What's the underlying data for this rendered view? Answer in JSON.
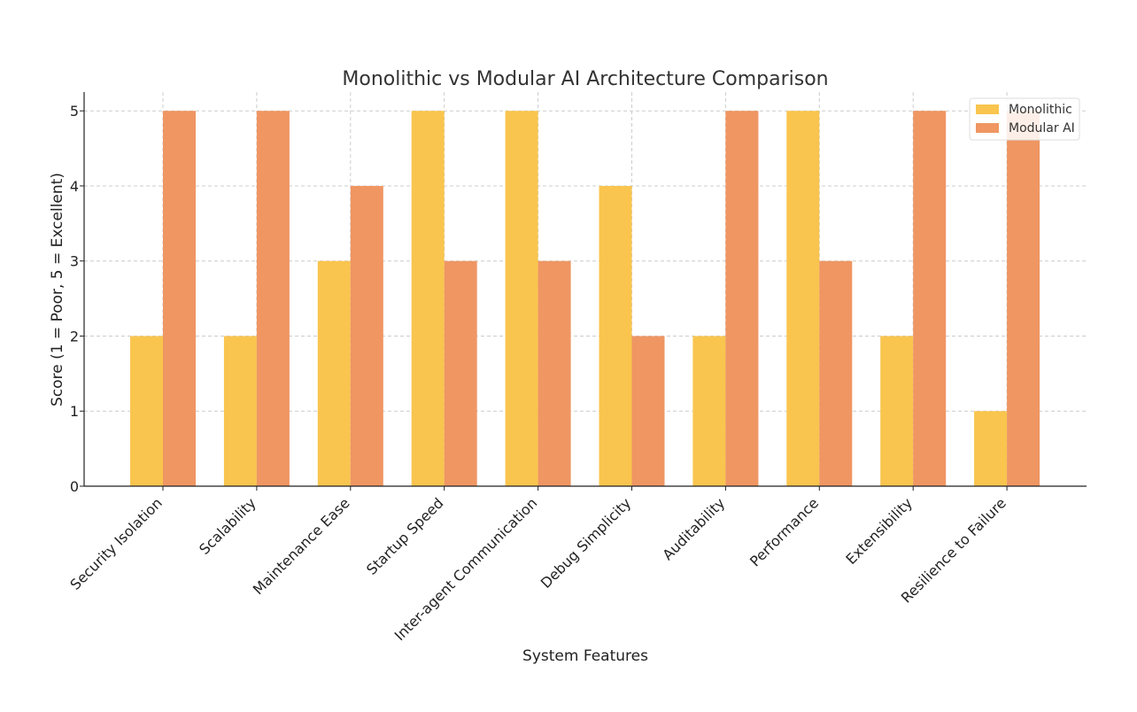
{
  "chart_data": {
    "type": "bar",
    "title": "Monolithic vs Modular AI Architecture Comparison",
    "xlabel": "System Features",
    "ylabel": "Score (1 = Poor, 5 = Excellent)",
    "categories": [
      "Security Isolation",
      "Scalability",
      "Maintenance Ease",
      "Startup Speed",
      "Inter-agent Communication",
      "Debug Simplicity",
      "Auditability",
      "Performance",
      "Extensibility",
      "Resilience to Failure"
    ],
    "series": [
      {
        "name": "Monolithic",
        "color": "#F9C54E",
        "values": [
          2,
          2,
          3,
          5,
          5,
          4,
          2,
          5,
          2,
          1
        ]
      },
      {
        "name": "Modular AI",
        "color": "#EF9663",
        "values": [
          5,
          5,
          4,
          3,
          3,
          2,
          5,
          3,
          5,
          5
        ]
      }
    ],
    "ylim": [
      0,
      5.25
    ],
    "yticks": [
      0,
      1,
      2,
      3,
      4,
      5
    ],
    "grid": true,
    "legend_position": "top-right"
  }
}
